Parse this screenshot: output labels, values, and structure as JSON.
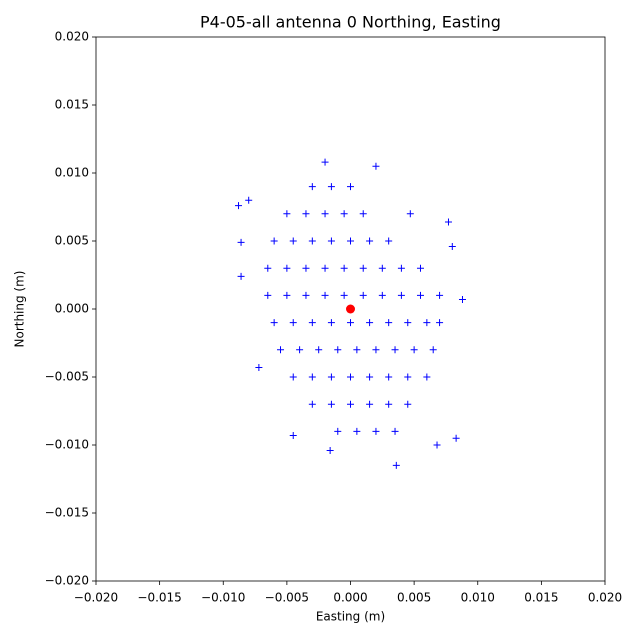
{
  "chart_data": {
    "type": "scatter",
    "title": "P4-05-all antenna 0 Northing, Easting",
    "x_label": "Easting (m)",
    "y_label": "Northing (m)",
    "xlim": [
      -0.02,
      0.02
    ],
    "ylim": [
      -0.02,
      0.02
    ],
    "xticks": [
      {
        "value": -0.02,
        "label": "−0.020"
      },
      {
        "value": -0.015,
        "label": "−0.015"
      },
      {
        "value": -0.01,
        "label": "−0.010"
      },
      {
        "value": -0.005,
        "label": "−0.005"
      },
      {
        "value": 0,
        "label": "0.000"
      },
      {
        "value": 0.005,
        "label": "0.005"
      },
      {
        "value": 0.01,
        "label": "0.010"
      },
      {
        "value": 0.015,
        "label": "0.015"
      },
      {
        "value": 0.02,
        "label": "0.020"
      }
    ],
    "yticks": [
      {
        "value": -0.02,
        "label": "−0.020"
      },
      {
        "value": -0.015,
        "label": "−0.015"
      },
      {
        "value": -0.01,
        "label": "−0.010"
      },
      {
        "value": -0.005,
        "label": "−0.005"
      },
      {
        "value": 0,
        "label": "0.000"
      },
      {
        "value": 0.005,
        "label": "0.005"
      },
      {
        "value": 0.01,
        "label": "0.010"
      },
      {
        "value": 0.015,
        "label": "0.015"
      },
      {
        "value": 0.02,
        "label": "0.020"
      }
    ],
    "series": [
      {
        "color": "#0000ff",
        "marker": "plus",
        "x": [
          -0.003,
          -0.0015,
          0,
          -0.005,
          -0.0035,
          -0.002,
          -0.0005,
          0.001,
          -0.006,
          -0.0045,
          -0.003,
          -0.0015,
          0,
          0.0015,
          0.003,
          -0.0065,
          -0.005,
          -0.0035,
          -0.002,
          -0.0005,
          0.001,
          0.0025,
          0.004,
          0.0055,
          -0.0065,
          -0.005,
          -0.0035,
          -0.002,
          -0.0005,
          0.001,
          0.0025,
          0.004,
          0.0055,
          0.007,
          -0.006,
          -0.0045,
          -0.003,
          -0.0015,
          0,
          0.0015,
          0.003,
          0.0045,
          0.006,
          0.007,
          -0.0055,
          -0.004,
          -0.0025,
          -0.001,
          0.0005,
          0.002,
          0.0035,
          0.005,
          0.0065,
          -0.0045,
          -0.003,
          -0.0015,
          0,
          0.0015,
          0.003,
          0.0045,
          0.006,
          -0.003,
          -0.0015,
          0,
          0.0015,
          0.003,
          0.0045,
          -0.001,
          0.0005,
          0.002,
          0.0035,
          -0.002,
          0.002,
          -0.0088,
          -0.008,
          -0.0086,
          -0.0086,
          0.0088,
          0.008,
          0.0077,
          0.0083,
          0.0068,
          0.0036,
          -0.0016,
          -0.0045,
          -0.0072,
          0.0047
        ],
        "values": [
          0.009,
          0.009,
          0.009,
          0.007,
          0.007,
          0.007,
          0.007,
          0.007,
          0.005,
          0.005,
          0.005,
          0.005,
          0.005,
          0.005,
          0.005,
          0.003,
          0.003,
          0.003,
          0.003,
          0.003,
          0.003,
          0.003,
          0.003,
          0.003,
          0.001,
          0.001,
          0.001,
          0.001,
          0.001,
          0.001,
          0.001,
          0.001,
          0.001,
          0.001,
          -0.001,
          -0.001,
          -0.001,
          -0.001,
          -0.001,
          -0.001,
          -0.001,
          -0.001,
          -0.001,
          -0.001,
          -0.003,
          -0.003,
          -0.003,
          -0.003,
          -0.003,
          -0.003,
          -0.003,
          -0.003,
          -0.003,
          -0.005,
          -0.005,
          -0.005,
          -0.005,
          -0.005,
          -0.005,
          -0.005,
          -0.005,
          -0.007,
          -0.007,
          -0.007,
          -0.007,
          -0.007,
          -0.007,
          -0.009,
          -0.009,
          -0.009,
          -0.009,
          0.0108,
          0.0105,
          0.0076,
          0.008,
          0.0049,
          0.0024,
          0.0007,
          0.0046,
          0.0064,
          -0.0095,
          -0.01,
          -0.0115,
          -0.0104,
          -0.0093,
          -0.0043,
          0.007
        ]
      },
      {
        "color": "#ff0000",
        "marker": "circle",
        "x": [
          0
        ],
        "values": [
          0
        ]
      }
    ]
  }
}
